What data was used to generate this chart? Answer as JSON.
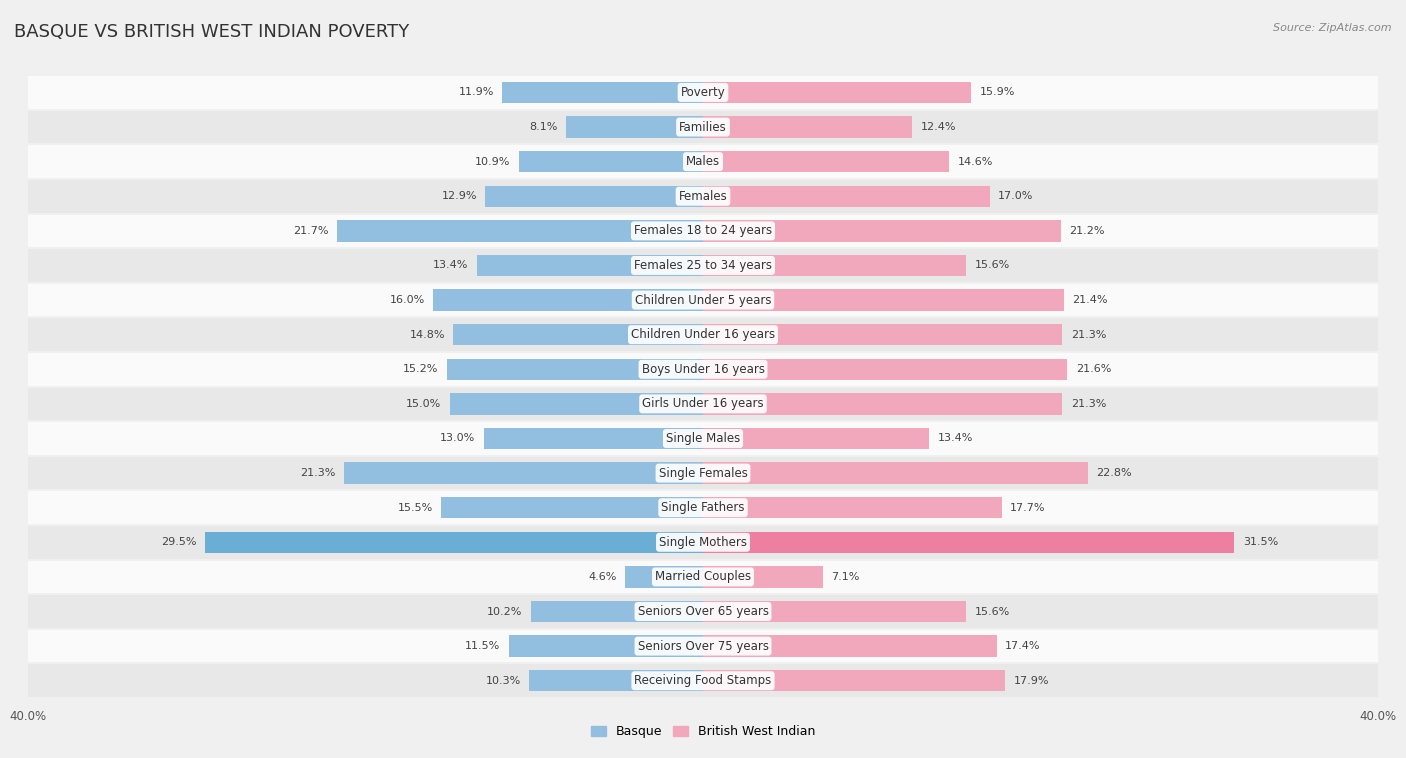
{
  "title": "BASQUE VS BRITISH WEST INDIAN POVERTY",
  "source": "Source: ZipAtlas.com",
  "categories": [
    "Poverty",
    "Families",
    "Males",
    "Females",
    "Females 18 to 24 years",
    "Females 25 to 34 years",
    "Children Under 5 years",
    "Children Under 16 years",
    "Boys Under 16 years",
    "Girls Under 16 years",
    "Single Males",
    "Single Females",
    "Single Fathers",
    "Single Mothers",
    "Married Couples",
    "Seniors Over 65 years",
    "Seniors Over 75 years",
    "Receiving Food Stamps"
  ],
  "basque_values": [
    11.9,
    8.1,
    10.9,
    12.9,
    21.7,
    13.4,
    16.0,
    14.8,
    15.2,
    15.0,
    13.0,
    21.3,
    15.5,
    29.5,
    4.6,
    10.2,
    11.5,
    10.3
  ],
  "bwi_values": [
    15.9,
    12.4,
    14.6,
    17.0,
    21.2,
    15.6,
    21.4,
    21.3,
    21.6,
    21.3,
    13.4,
    22.8,
    17.7,
    31.5,
    7.1,
    15.6,
    17.4,
    17.9
  ],
  "basque_color": "#92bfdf",
  "bwi_color": "#f2a8bc",
  "single_mothers_basque_color": "#6aaed6",
  "single_mothers_bwi_color": "#ee7fa0",
  "background_color": "#f0f0f0",
  "row_color_light": "#fafafa",
  "row_color_dark": "#e8e8e8",
  "max_value": 40.0,
  "title_fontsize": 13,
  "label_fontsize": 8.5,
  "value_fontsize": 8.0,
  "legend_fontsize": 9
}
